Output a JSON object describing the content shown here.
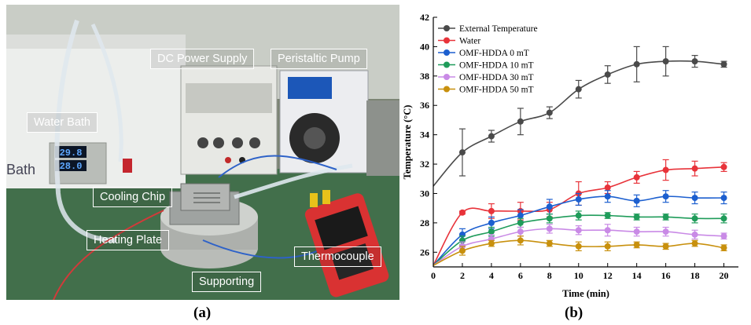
{
  "photo": {
    "labels": {
      "dc_power_supply": "DC Power Supply",
      "peristaltic_pump": "Peristaltic Pump",
      "water_bath": "Water Bath",
      "cooling_chip": "Cooling Chip",
      "heating_plate": "Heating Plate",
      "thermocouple": "Thermocouple",
      "supporting": "Supporting"
    },
    "bath_display_top": "29.8",
    "bath_display_bottom": "28.0",
    "bath_brand": "Bath"
  },
  "captions": {
    "left": "(a)",
    "right": "(b)"
  },
  "chart_data": {
    "type": "line",
    "xlabel": "Time (min)",
    "ylabel": "Temperature (°C)",
    "xlim": [
      0,
      21
    ],
    "ylim": [
      25,
      42
    ],
    "xticks": [
      0,
      2,
      4,
      6,
      8,
      10,
      12,
      14,
      16,
      18,
      20
    ],
    "yticks": [
      26,
      28,
      30,
      32,
      34,
      36,
      38,
      40,
      42
    ],
    "legend_position": "top-left",
    "x_points": [
      2,
      4,
      6,
      8,
      10,
      12,
      14,
      16,
      18,
      20
    ],
    "series": [
      {
        "name": "External Temperature",
        "color": "#4a4a4a",
        "start": 30.5,
        "values": [
          32.8,
          33.9,
          34.9,
          35.5,
          37.1,
          38.1,
          38.8,
          39.0,
          39.0,
          38.8
        ],
        "errors": [
          1.6,
          0.4,
          0.9,
          0.4,
          0.6,
          0.6,
          1.2,
          1.0,
          0.4,
          0.2
        ]
      },
      {
        "name": "Water",
        "color": "#e8333a",
        "start": 25.1,
        "values": [
          28.7,
          28.8,
          28.8,
          28.9,
          30.0,
          30.4,
          31.1,
          31.6,
          31.7,
          31.8
        ],
        "errors": [
          0.1,
          0.5,
          0.6,
          0.5,
          0.8,
          0.4,
          0.4,
          0.7,
          0.5,
          0.3
        ]
      },
      {
        "name": "OMF-HDDA 0 mT",
        "color": "#1c5fcf",
        "start": 25.1,
        "values": [
          27.2,
          28.0,
          28.5,
          29.1,
          29.6,
          29.8,
          29.5,
          29.8,
          29.7,
          29.7
        ],
        "errors": [
          0.4,
          0.4,
          0.4,
          0.5,
          0.4,
          0.4,
          0.4,
          0.4,
          0.4,
          0.4
        ]
      },
      {
        "name": "OMF-HDDA 10 mT",
        "color": "#1f9c5a",
        "start": 25.1,
        "values": [
          26.8,
          27.4,
          28.0,
          28.3,
          28.5,
          28.5,
          28.4,
          28.4,
          28.3,
          28.3
        ],
        "errors": [
          0.3,
          0.3,
          0.3,
          0.3,
          0.3,
          0.2,
          0.2,
          0.2,
          0.3,
          0.3
        ]
      },
      {
        "name": "OMF-HDDA 30 mT",
        "color": "#c98ae6",
        "start": 25.1,
        "values": [
          26.4,
          26.9,
          27.4,
          27.6,
          27.5,
          27.5,
          27.4,
          27.4,
          27.2,
          27.1
        ],
        "errors": [
          0.3,
          0.3,
          0.3,
          0.3,
          0.3,
          0.4,
          0.3,
          0.3,
          0.3,
          0.2
        ]
      },
      {
        "name": "OMF-HDDA 50 mT",
        "color": "#c8900d",
        "start": 25.1,
        "values": [
          26.1,
          26.6,
          26.8,
          26.6,
          26.4,
          26.4,
          26.5,
          26.4,
          26.6,
          26.3
        ],
        "errors": [
          0.3,
          0.2,
          0.3,
          0.2,
          0.3,
          0.3,
          0.2,
          0.2,
          0.2,
          0.2
        ]
      }
    ]
  }
}
